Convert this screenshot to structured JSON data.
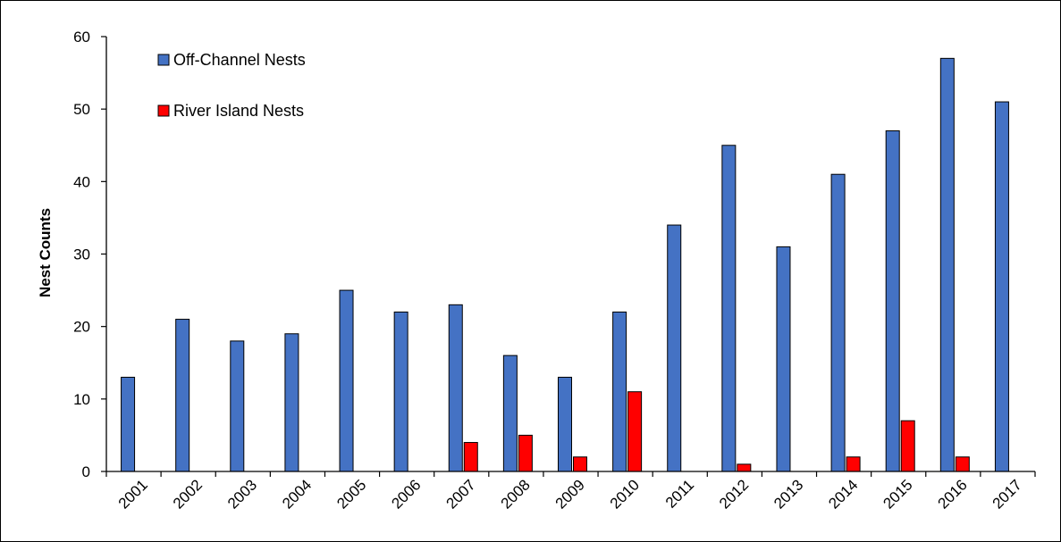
{
  "chart_data": {
    "type": "bar",
    "title": "",
    "xlabel": "",
    "ylabel": "Nest Counts",
    "ylim": [
      0,
      60
    ],
    "yticks": [
      0,
      10,
      20,
      30,
      40,
      50,
      60
    ],
    "grid": false,
    "legend_position": "top-left",
    "categories": [
      "2001",
      "2002",
      "2003",
      "2004",
      "2005",
      "2006",
      "2007",
      "2008",
      "2009",
      "2010",
      "2011",
      "2012",
      "2013",
      "2014",
      "2015",
      "2016",
      "2017"
    ],
    "series": [
      {
        "name": "Off-Channel Nests",
        "color": "#4472C4",
        "values": [
          13,
          21,
          18,
          19,
          25,
          22,
          23,
          16,
          13,
          22,
          34,
          45,
          31,
          41,
          47,
          57,
          51
        ]
      },
      {
        "name": "River Island Nests",
        "color": "#FF0000",
        "values": [
          0,
          0,
          0,
          0,
          0,
          0,
          4,
          5,
          2,
          11,
          0,
          1,
          0,
          2,
          7,
          2,
          0
        ]
      }
    ]
  }
}
